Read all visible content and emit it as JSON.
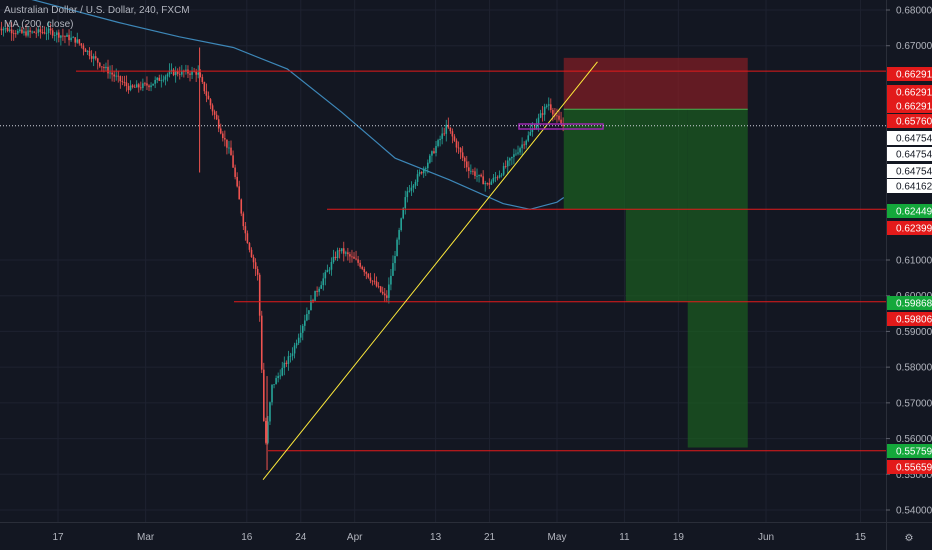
{
  "legend": {
    "symbol": "Australian Dollar / U.S. Dollar, 240, FXCM",
    "indicator": "MA (200, close)"
  },
  "colors": {
    "background": "#131722",
    "up_candle": "#26a69a",
    "down_candle": "#ef5350",
    "ma_line": "#3d87b8",
    "horizontal_line": "#e31a1a",
    "trendline": "#ffeb3b",
    "target_box": "#1b5e20",
    "stop_box": "#7f1d24",
    "marker_box": "#9c27b0"
  },
  "chart_data": {
    "type": "candlestick",
    "title": "Australian Dollar / U.S. Dollar, 240, FXCM",
    "y_axis": {
      "ticks": [
        "0.68000",
        "0.67000",
        "0.61000",
        "0.60000",
        "0.59000",
        "0.58000",
        "0.57000",
        "0.56000",
        "0.55000",
        "0.54000"
      ],
      "tick_values": [
        0.68,
        0.67,
        0.61,
        0.6,
        0.59,
        0.58,
        0.57,
        0.56,
        0.55,
        0.54
      ],
      "range": [
        0.5375,
        0.684
      ]
    },
    "x_axis": {
      "ticks": [
        "17",
        "Mar",
        "16",
        "24",
        "Apr",
        "13",
        "21",
        "May",
        "11",
        "19",
        "Jun",
        "15"
      ]
    },
    "price_tags": [
      {
        "text": "0.66291",
        "value": 0.66291,
        "color": "#e31a1a"
      },
      {
        "text": "0.66291",
        "value": 0.66291,
        "color": "#e31a1a"
      },
      {
        "text": "0.66291",
        "value": 0.66291,
        "color": "#e31a1a"
      },
      {
        "text": "0.65760",
        "value": 0.6576,
        "color": "#e31a1a"
      },
      {
        "text": "0.64754",
        "value": 0.64754,
        "color": "#ffffff"
      },
      {
        "text": "0.64754",
        "value": 0.64754,
        "color": "#ffffff"
      },
      {
        "text": "0.64754",
        "value": 0.64754,
        "color": "#ffffff"
      },
      {
        "text": "0.64162",
        "value": 0.64162,
        "color": "#ffffff"
      },
      {
        "text": "0.62449",
        "value": 0.62449,
        "color": "#14a83b"
      },
      {
        "text": "0.62399",
        "value": 0.62399,
        "color": "#e31a1a"
      },
      {
        "text": "0.59868",
        "value": 0.59868,
        "color": "#14a83b"
      },
      {
        "text": "0.59806",
        "value": 0.59806,
        "color": "#e31a1a"
      },
      {
        "text": "0.55759",
        "value": 0.55759,
        "color": "#14a83b"
      },
      {
        "text": "0.55659",
        "value": 0.55659,
        "color": "#e31a1a"
      }
    ],
    "last_price": 0.64162,
    "horizontal_levels": [
      0.6629,
      0.6242,
      0.5983,
      0.5566
    ],
    "trendline": {
      "from": [
        "Mar 19",
        0.5485
      ],
      "to": [
        "May 7",
        0.6655
      ]
    },
    "position": {
      "entry": 0.6522,
      "stop": 0.6648,
      "targets": [
        0.6242,
        0.5983,
        0.5575
      ]
    },
    "series": [
      {
        "name": "AUD/USD",
        "points": [
          [
            "Feb 8",
            0.6755
          ],
          [
            "Feb 12",
            0.6735
          ],
          [
            "Feb 16",
            0.674
          ],
          [
            "Feb 20",
            0.6715
          ],
          [
            "Feb 24",
            0.664
          ],
          [
            "Feb 28",
            0.658
          ],
          [
            "Mar 2",
            0.6592
          ],
          [
            "Mar 5",
            0.6625
          ],
          [
            "Mar 9",
            0.6625
          ],
          [
            "Mar 11",
            0.653
          ],
          [
            "Mar 14",
            0.639
          ],
          [
            "Mar 16",
            0.618
          ],
          [
            "Mar 18",
            0.605
          ],
          [
            "Mar 19",
            0.5565
          ],
          [
            "Mar 20",
            0.5745
          ],
          [
            "Mar 23",
            0.584
          ],
          [
            "Mar 26",
            0.599
          ],
          [
            "Mar 30",
            0.613
          ],
          [
            "Apr 2",
            0.609
          ],
          [
            "Apr 6",
            0.599
          ],
          [
            "Apr 9",
            0.629
          ],
          [
            "Apr 12",
            0.637
          ],
          [
            "Apr 15",
            0.6475
          ],
          [
            "Apr 18",
            0.636
          ],
          [
            "Apr 21",
            0.631
          ],
          [
            "Apr 23",
            0.6345
          ],
          [
            "Apr 27",
            0.6445
          ],
          [
            "Apr 30",
            0.654
          ],
          [
            "May 1",
            0.6505
          ],
          [
            "May 2",
            0.6476
          ]
        ]
      },
      {
        "name": "MA (200, close)",
        "points": [
          [
            "Feb 12",
            0.6835
          ],
          [
            "Feb 26",
            0.6765
          ],
          [
            "Mar 6",
            0.6725
          ],
          [
            "Mar 14",
            0.6695
          ],
          [
            "Mar 22",
            0.6635
          ],
          [
            "Mar 30",
            0.6515
          ],
          [
            "Apr 7",
            0.6385
          ],
          [
            "Apr 15",
            0.6325
          ],
          [
            "Apr 23",
            0.6258
          ],
          [
            "Apr 27",
            0.6242
          ],
          [
            "May 1",
            0.6262
          ],
          [
            "May 2",
            0.6275
          ]
        ]
      }
    ]
  }
}
